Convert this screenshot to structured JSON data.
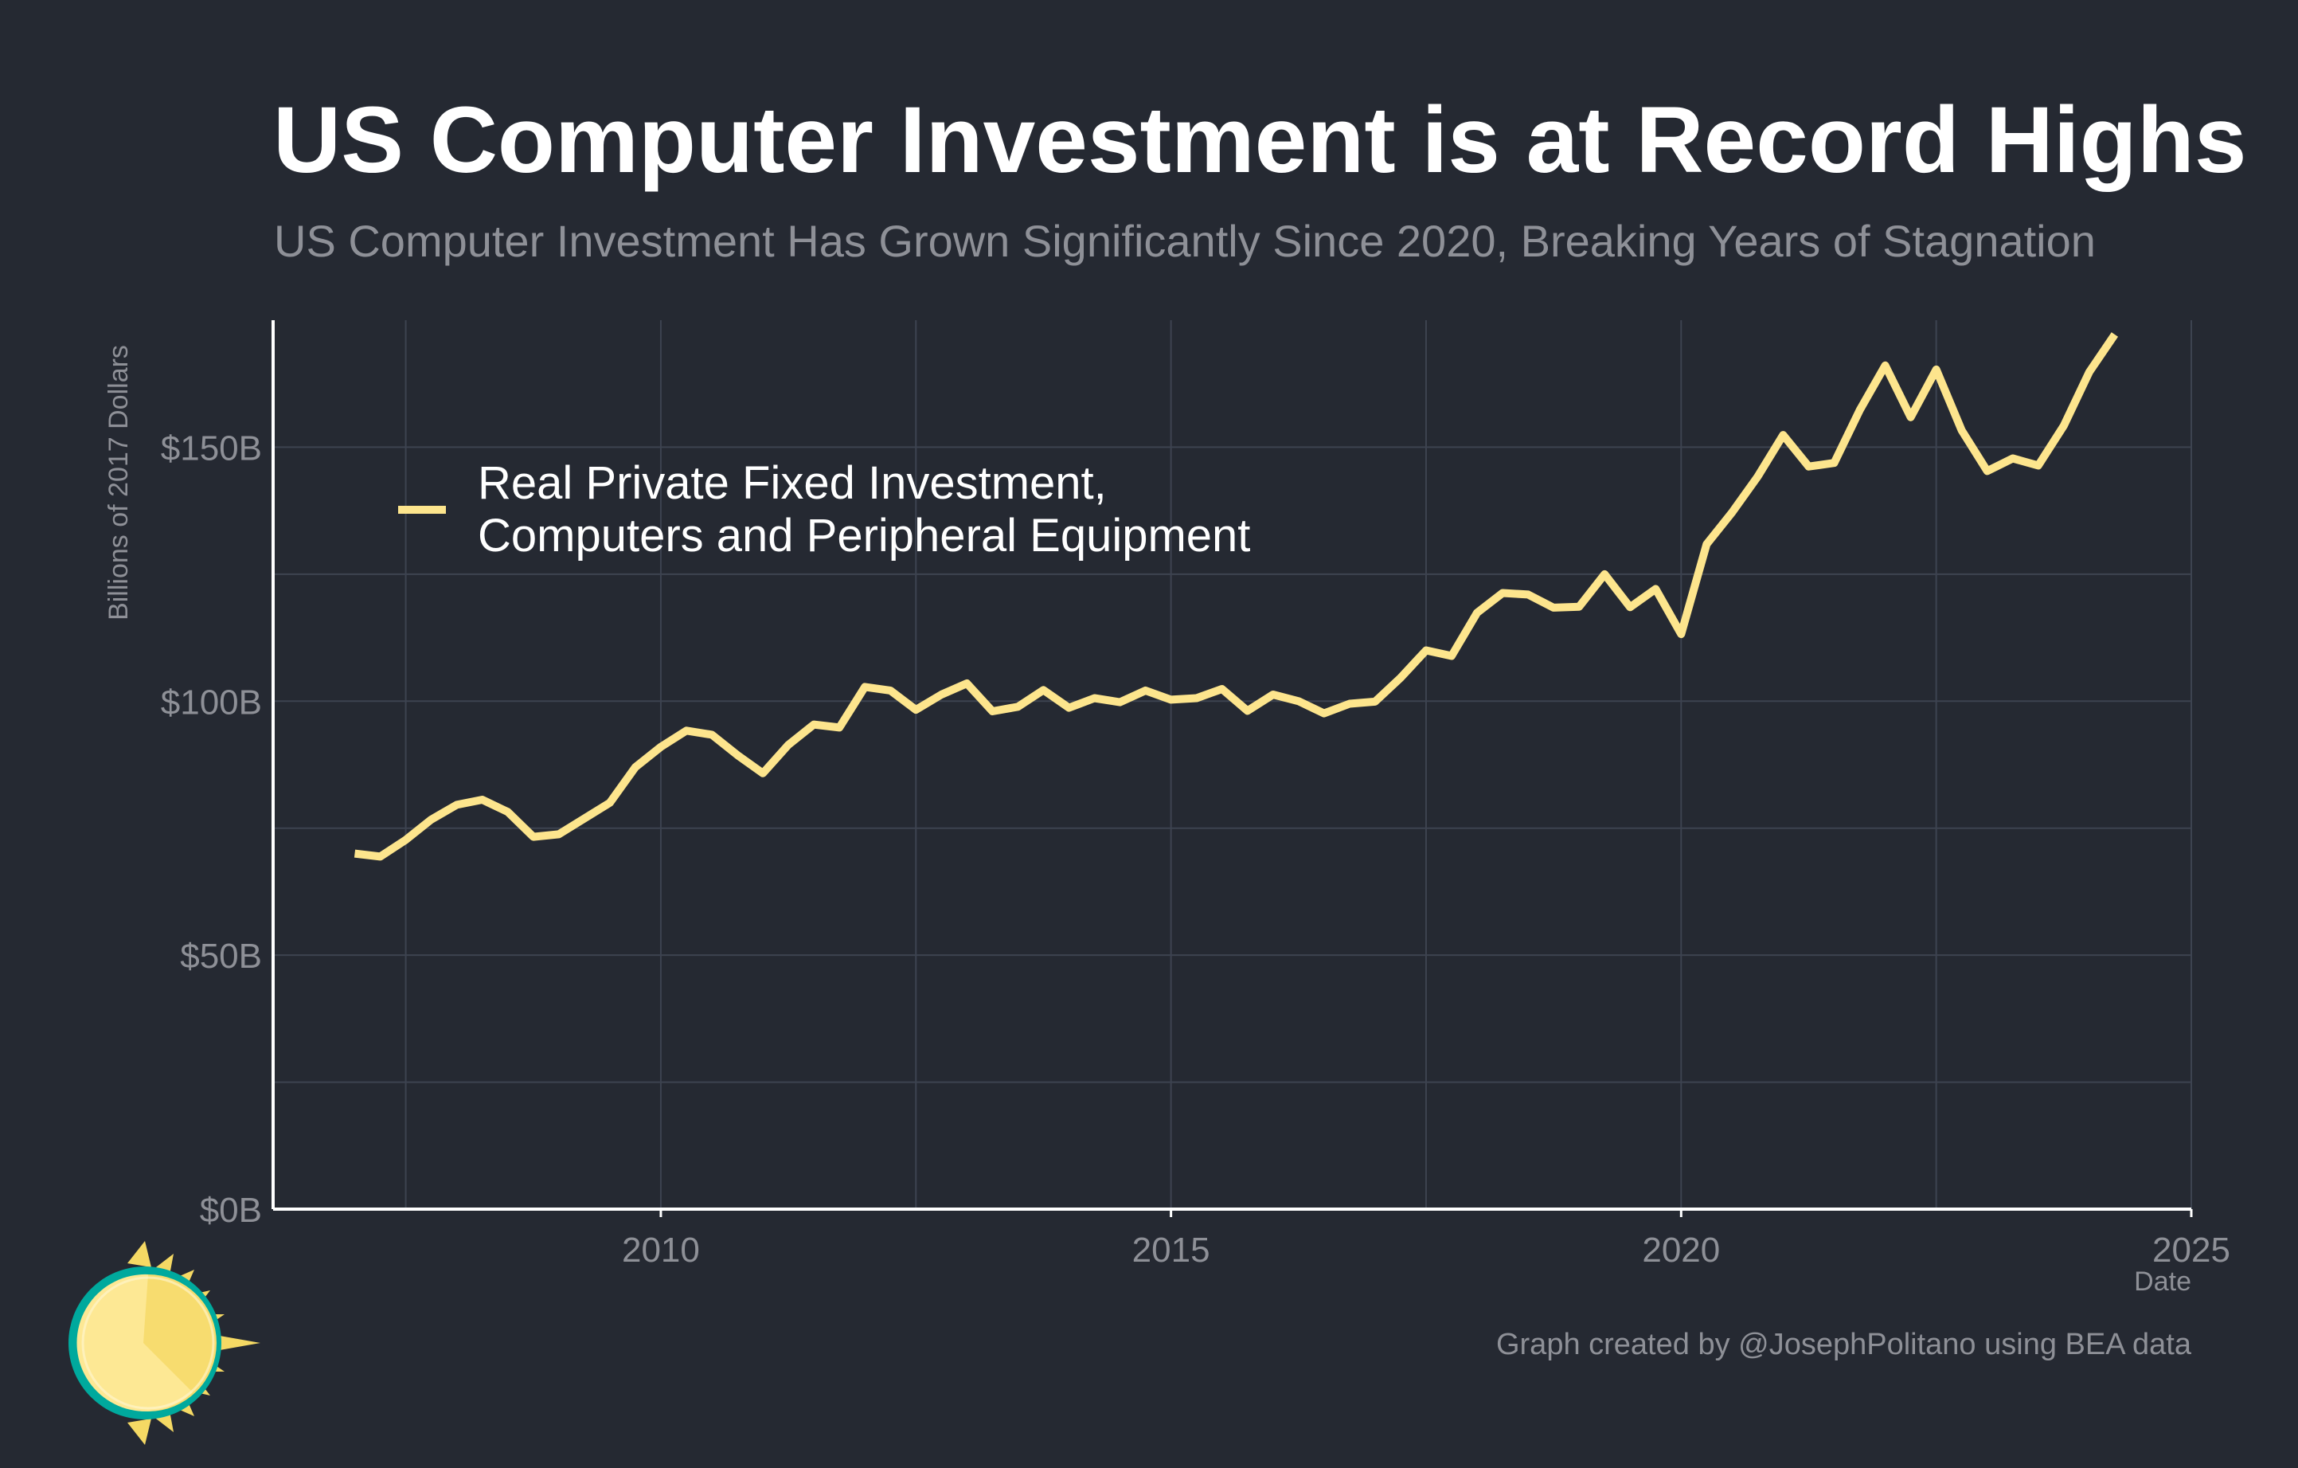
{
  "colors": {
    "background": "#252932",
    "line": "#fde58d",
    "grid": "#3d4350",
    "axis": "#ffffff",
    "muted_text": "#8e9097",
    "sun_rim": "#00a99d"
  },
  "logo": {
    "icon": "sun-logo-icon"
  },
  "credit": "Graph created by @JosephPolitano using BEA data",
  "chart_data": {
    "type": "line",
    "title": "US Computer Investment is at Record Highs",
    "subtitle": "US Computer Investment Has Grown Significantly Since 2020, Breaking Years of Stagnation",
    "xlabel": "Date",
    "ylabel": "Billions of 2017 Dollars",
    "xlim": [
      2006.2,
      2025.0
    ],
    "ylim": [
      0,
      175
    ],
    "x_ticks": [
      2010,
      2015,
      2020,
      2025
    ],
    "x_tick_labels": [
      "2010",
      "2015",
      "2020",
      "2025"
    ],
    "x_minor_ticks": [
      2007.5,
      2012.5,
      2017.5,
      2022.5
    ],
    "y_ticks": [
      0,
      50,
      100,
      150
    ],
    "y_tick_labels": [
      "$0B",
      "$50B",
      "$100B",
      "$150B"
    ],
    "y_minor_ticks": [
      25,
      75,
      125
    ],
    "grid": true,
    "legend_position": "top-left",
    "series": [
      {
        "name": "Real Private Fixed Investment, Computers and Peripheral Equipment",
        "legend_lines": [
          "Real Private Fixed Investment,",
          "Computers and Peripheral Equipment"
        ],
        "x": [
          2007.0,
          2007.25,
          2007.5,
          2007.75,
          2008.0,
          2008.25,
          2008.5,
          2008.75,
          2009.0,
          2009.25,
          2009.5,
          2009.75,
          2010.0,
          2010.25,
          2010.5,
          2010.75,
          2011.0,
          2011.25,
          2011.5,
          2011.75,
          2012.0,
          2012.25,
          2012.5,
          2012.75,
          2013.0,
          2013.25,
          2013.5,
          2013.75,
          2014.0,
          2014.25,
          2014.5,
          2014.75,
          2015.0,
          2015.25,
          2015.5,
          2015.75,
          2016.0,
          2016.25,
          2016.5,
          2016.75,
          2017.0,
          2017.25,
          2017.5,
          2017.75,
          2018.0,
          2018.25,
          2018.5,
          2018.75,
          2019.0,
          2019.25,
          2019.5,
          2019.75,
          2020.0,
          2020.25,
          2020.5,
          2020.75,
          2021.0,
          2021.25,
          2021.5,
          2021.75,
          2022.0,
          2022.25,
          2022.5,
          2022.75,
          2023.0,
          2023.25,
          2023.5,
          2023.75,
          2024.0,
          2024.25
        ],
        "values": [
          70.0,
          69.4,
          72.7,
          76.7,
          79.6,
          80.6,
          78.2,
          73.3,
          73.8,
          76.9,
          80.0,
          87.0,
          91.0,
          94.2,
          93.4,
          89.4,
          85.8,
          91.4,
          95.4,
          94.8,
          102.8,
          102.1,
          98.3,
          101.3,
          103.5,
          98.0,
          98.9,
          102.2,
          98.7,
          100.6,
          99.8,
          102.1,
          100.3,
          100.6,
          102.4,
          98.1,
          101.3,
          100.0,
          97.6,
          99.5,
          99.9,
          104.6,
          110.0,
          108.9,
          117.4,
          121.3,
          121.0,
          118.4,
          118.6,
          125.0,
          118.5,
          122.1,
          113.2,
          130.9,
          137.2,
          144.2,
          152.4,
          146.2,
          146.9,
          157.3,
          166.1,
          155.9,
          165.3,
          153.3,
          145.3,
          147.8,
          146.4,
          154.2,
          164.8,
          172.2
        ]
      }
    ]
  }
}
